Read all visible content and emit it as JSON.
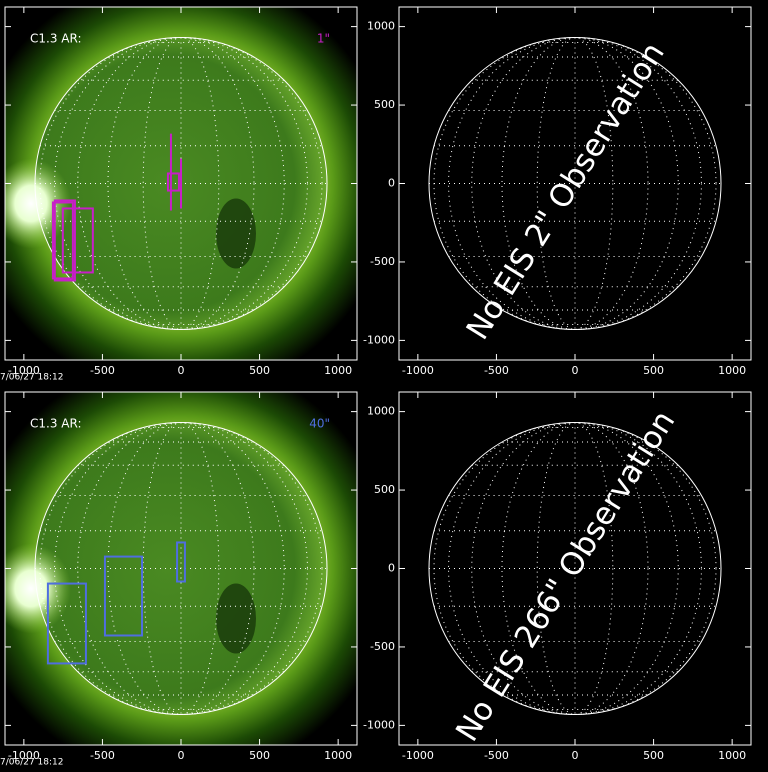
{
  "chart_data": [
    {
      "type": "image",
      "title": "C1.3 AR:",
      "scale_label": "1\"",
      "box_color": "#c81ec8",
      "date": "7/06/27 18:12",
      "xlim": [
        -1120,
        1120
      ],
      "ylim": [
        -1125,
        1125
      ],
      "xticks": [
        -1000,
        -500,
        0,
        500,
        1000
      ],
      "yticks": [
        -1000,
        -500,
        0,
        500,
        1000
      ],
      "boxes": [
        [
          -815,
          -121,
          -688,
          -605
        ],
        [
          -752,
          -159,
          -561,
          -567
        ],
        [
          -803,
          -108,
          -675,
          -618
        ],
        [
          -83,
          64,
          -13,
          -45
        ],
        [
          -64,
          318,
          -64,
          -172
        ],
        [
          0,
          159,
          0,
          -159
        ]
      ]
    },
    {
      "type": "empty",
      "annotation": "No EIS 2\" Observation",
      "xlim": [
        -1120,
        1120
      ],
      "ylim": [
        -1125,
        1125
      ],
      "xticks": [
        -1000,
        -500,
        0,
        500,
        1000
      ],
      "yticks": [
        -1000,
        -500,
        0,
        500,
        1000
      ]
    },
    {
      "type": "image",
      "title": "C1.3 AR:",
      "scale_label": "40\"",
      "box_color": "#4f6ee0",
      "date": "7/06/27 18:12",
      "xlim": [
        -1120,
        1120
      ],
      "ylim": [
        -1125,
        1125
      ],
      "xticks": [
        -1000,
        -500,
        0,
        500,
        1000
      ],
      "yticks": [
        -1000,
        -500,
        0,
        500,
        1000
      ],
      "boxes": [
        [
          -847,
          -96,
          -605,
          -605
        ],
        [
          -484,
          76,
          -248,
          -427
        ],
        [
          -25,
          166,
          25,
          -83
        ]
      ]
    },
    {
      "type": "empty",
      "annotation": "No EIS 266\" Observation",
      "xlim": [
        -1120,
        1120
      ],
      "ylim": [
        -1125,
        1125
      ],
      "xticks": [
        -1000,
        -500,
        0,
        500,
        1000
      ],
      "yticks": [
        -1000,
        -500,
        0,
        500,
        1000
      ]
    }
  ]
}
